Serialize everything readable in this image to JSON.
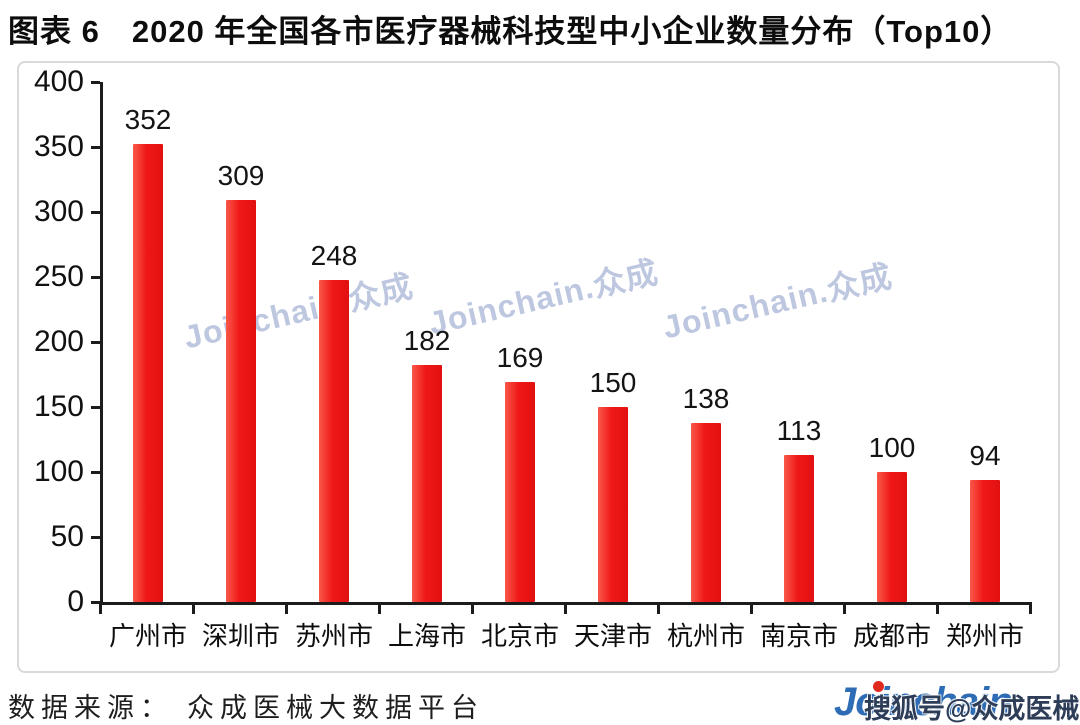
{
  "page": {
    "title": "图表 6　2020 年全国各市医疗器械科技型中小企业数量分布（Top10）"
  },
  "chart_data": {
    "type": "bar",
    "title": "2020 年全国各市医疗器械科技型中小企业数量分布（Top10）",
    "categories": [
      "广州市",
      "深圳市",
      "苏州市",
      "上海市",
      "北京市",
      "天津市",
      "杭州市",
      "南京市",
      "成都市",
      "郑州市"
    ],
    "values": [
      352,
      309,
      248,
      182,
      169,
      150,
      138,
      113,
      100,
      94
    ],
    "xlabel": "",
    "ylabel": "",
    "ylim": [
      0,
      400
    ],
    "ytick_step": 50,
    "yticks": [
      400,
      350,
      300,
      250,
      200,
      150,
      100,
      50,
      0
    ],
    "grid": false,
    "legend": null,
    "data_labels": true,
    "bar_colors": {
      "light": "#f9584a",
      "main": "#ef1817",
      "dark": "#e21011"
    }
  },
  "watermark": {
    "text": "Joinchain.众成",
    "color": "#a8b4d6"
  },
  "footer": {
    "source_label": "数据来源：",
    "source_value": "众成医械大数据平台",
    "logo_text": "Joinchain",
    "logo_color": "#2e6db5",
    "overlay_text": "搜狐号@众成医械"
  }
}
